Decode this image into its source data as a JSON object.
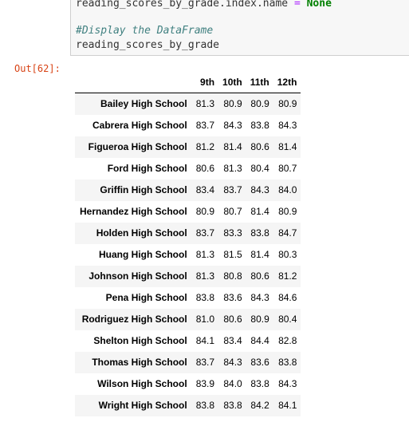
{
  "code": {
    "line1": {
      "var": "reading_scores_by_grade.index.name",
      "op": "=",
      "value": "None"
    },
    "comment": "#Display the DataFrame",
    "line3": "reading_scores_by_grade"
  },
  "output_prompt": "Out[62]:",
  "table": {
    "columns": [
      "9th",
      "10th",
      "11th",
      "12th"
    ],
    "rows": [
      {
        "school": "Bailey High School",
        "values": [
          "81.3",
          "80.9",
          "80.9",
          "80.9"
        ]
      },
      {
        "school": "Cabrera High School",
        "values": [
          "83.7",
          "84.3",
          "83.8",
          "84.3"
        ]
      },
      {
        "school": "Figueroa High School",
        "values": [
          "81.2",
          "81.4",
          "80.6",
          "81.4"
        ]
      },
      {
        "school": "Ford High School",
        "values": [
          "80.6",
          "81.3",
          "80.4",
          "80.7"
        ]
      },
      {
        "school": "Griffin High School",
        "values": [
          "83.4",
          "83.7",
          "84.3",
          "84.0"
        ]
      },
      {
        "school": "Hernandez High School",
        "values": [
          "80.9",
          "80.7",
          "81.4",
          "80.9"
        ]
      },
      {
        "school": "Holden High School",
        "values": [
          "83.7",
          "83.3",
          "83.8",
          "84.7"
        ]
      },
      {
        "school": "Huang High School",
        "values": [
          "81.3",
          "81.5",
          "81.4",
          "80.3"
        ]
      },
      {
        "school": "Johnson High School",
        "values": [
          "81.3",
          "80.8",
          "80.6",
          "81.2"
        ]
      },
      {
        "school": "Pena High School",
        "values": [
          "83.8",
          "83.6",
          "84.3",
          "84.6"
        ]
      },
      {
        "school": "Rodriguez High School",
        "values": [
          "81.0",
          "80.6",
          "80.9",
          "80.4"
        ]
      },
      {
        "school": "Shelton High School",
        "values": [
          "84.1",
          "83.4",
          "84.4",
          "82.8"
        ]
      },
      {
        "school": "Thomas High School",
        "values": [
          "83.7",
          "84.3",
          "83.6",
          "83.8"
        ]
      },
      {
        "school": "Wilson High School",
        "values": [
          "83.9",
          "84.0",
          "83.8",
          "84.3"
        ]
      },
      {
        "school": "Wright High School",
        "values": [
          "83.8",
          "83.8",
          "84.2",
          "84.1"
        ]
      }
    ]
  }
}
